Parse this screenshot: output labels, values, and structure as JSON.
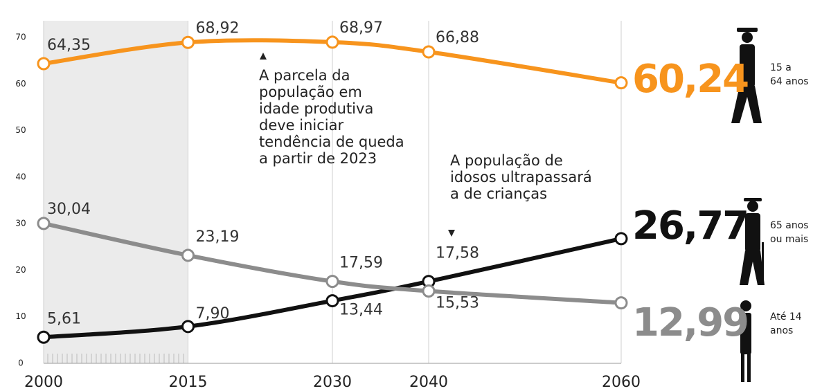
{
  "chart_data": {
    "type": "line",
    "x": [
      2000,
      2015,
      2030,
      2040,
      2060
    ],
    "xlim": [
      2000,
      2060
    ],
    "xticks": [
      2000,
      2015,
      2030,
      2040,
      2060
    ],
    "ylim": [
      0,
      70
    ],
    "yticks": [
      0,
      10,
      20,
      30,
      40,
      50,
      60,
      70
    ],
    "shade": [
      2000,
      2015
    ],
    "grid": true,
    "series": [
      {
        "name": "15 a\n64 anos",
        "color": "#f7941d",
        "values": [
          64.35,
          68.92,
          68.97,
          66.88,
          60.24
        ],
        "value_labels": [
          "64,35",
          "68,92",
          "68,97",
          "66,88",
          "60,24"
        ]
      },
      {
        "name": "65 anos\nou mais",
        "color": "#111111",
        "values": [
          5.61,
          7.9,
          13.44,
          17.58,
          26.77
        ],
        "value_labels": [
          "5,61",
          "7,90",
          "13,44",
          "17,58",
          "26,77"
        ]
      },
      {
        "name": "Até 14\nanos",
        "color": "#8c8c8c",
        "values": [
          30.04,
          23.19,
          17.59,
          15.53,
          12.99
        ],
        "value_labels": [
          "30,04",
          "23,19",
          "17,59",
          "15,53",
          "12,99"
        ]
      }
    ],
    "annotations": [
      "A parcela da\npopulação em\nidade produtiva\ndeve iniciar\ntendência de queda\na partir de 2023",
      "A população de\nidosos ultrapassará\na de crianças"
    ]
  }
}
